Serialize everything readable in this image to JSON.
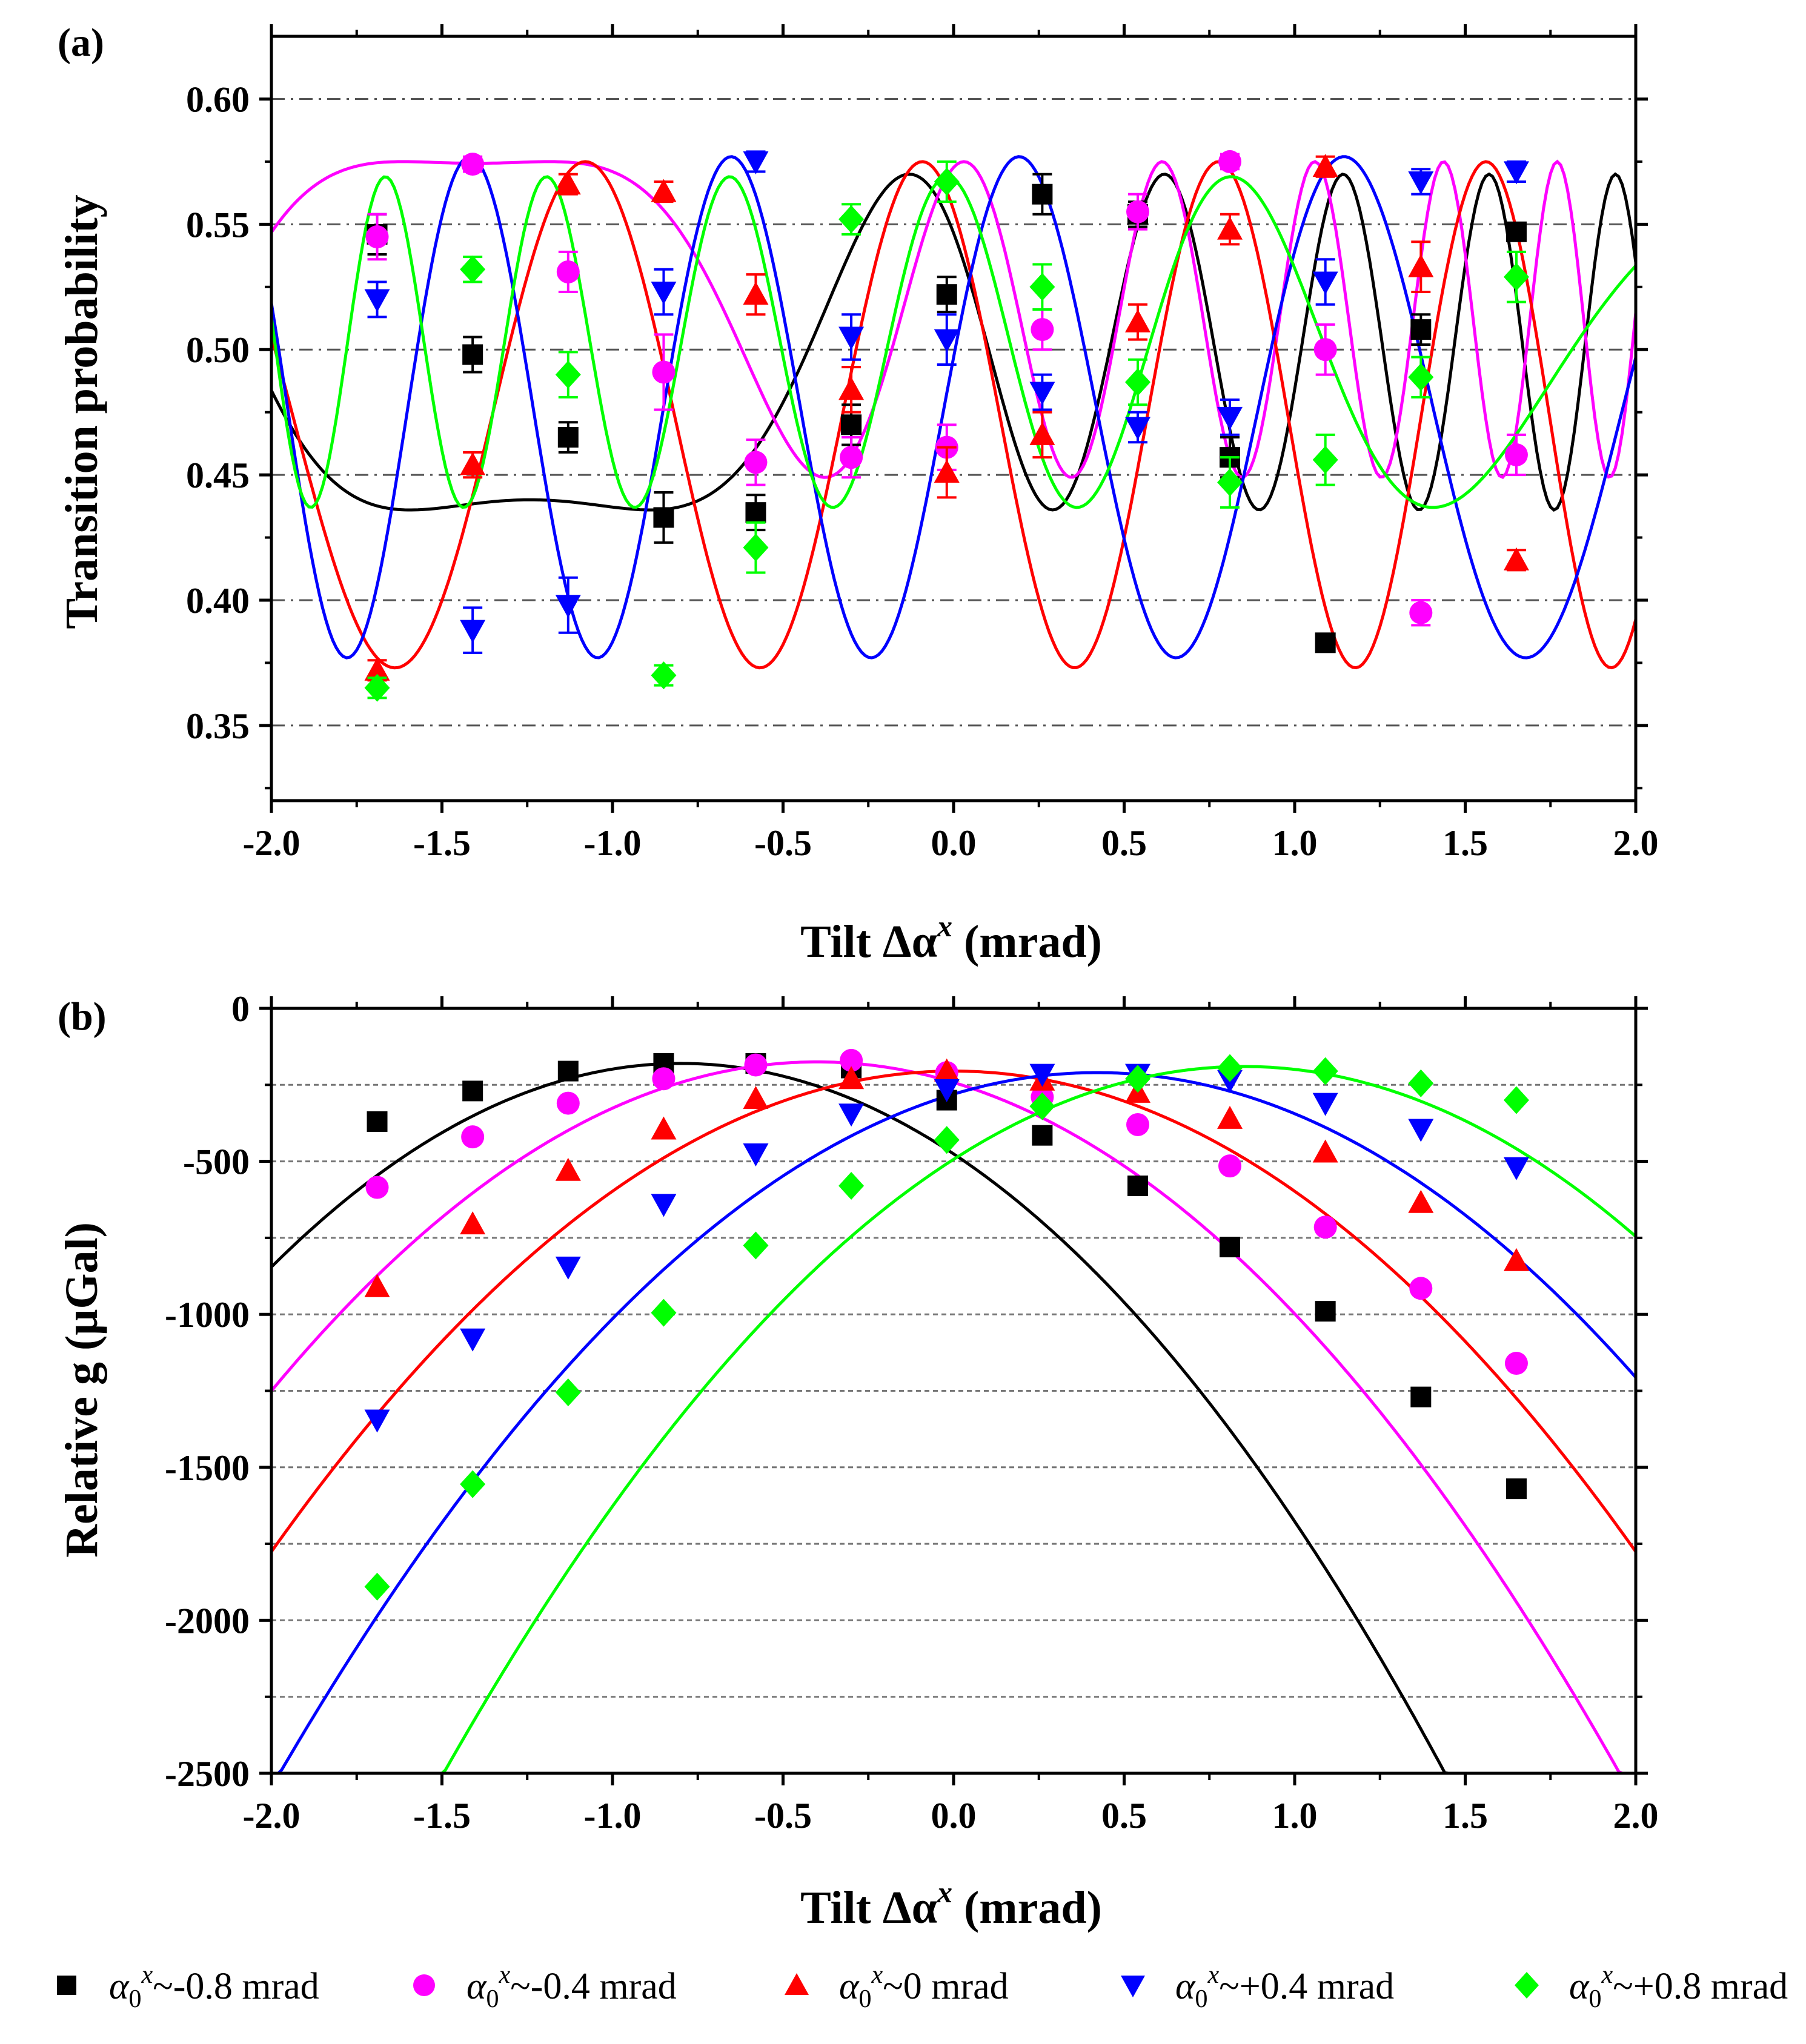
{
  "figure": {
    "legend": [
      {
        "marker": "square",
        "color": "#000000",
        "symbol": "α",
        "sub": "0",
        "sup": "x",
        "text": "~-0.8 mrad"
      },
      {
        "marker": "circle",
        "color": "#ff00ff",
        "symbol": "α",
        "sub": "0",
        "sup": "x",
        "text": "~-0.4 mrad"
      },
      {
        "marker": "triangle-up",
        "color": "#ff0000",
        "symbol": "α",
        "sub": "0",
        "sup": "x",
        "text": "~0 mrad"
      },
      {
        "marker": "triangle-down",
        "color": "#0000ff",
        "symbol": "α",
        "sub": "0",
        "sup": "x",
        "text": "~+0.4 mrad"
      },
      {
        "marker": "diamond",
        "color": "#00ff00",
        "symbol": "α",
        "sub": "0",
        "sup": "x",
        "text": "~+0.8 mrad"
      }
    ]
  },
  "chart_data": [
    {
      "panel_label": "(a)",
      "type": "scatter",
      "xlabel": "Tilt Δα",
      "xlabel_sup": "x",
      "xlabel_unit": " (mrad)",
      "ylabel": "Transition probability",
      "xlim": [
        -2.0,
        2.0
      ],
      "ylim": [
        0.32,
        0.625
      ],
      "xticks": [
        -2.0,
        -1.5,
        -1.0,
        -0.5,
        0.0,
        0.5,
        1.0,
        1.5,
        2.0
      ],
      "xtick_labels": [
        "-2.0",
        "-1.5",
        "-1.0",
        "-0.5",
        "0.0",
        "0.5",
        "1.0",
        "1.5",
        "2.0"
      ],
      "yticks": [
        0.35,
        0.4,
        0.45,
        0.5,
        0.55,
        0.6
      ],
      "ytick_labels": [
        "0.35",
        "0.40",
        "0.45",
        "0.50",
        "0.55",
        "0.60"
      ],
      "gridlines": [
        0.35,
        0.4,
        0.45,
        0.5,
        0.55,
        0.6
      ],
      "x": [
        -1.69,
        -1.41,
        -1.13,
        -0.85,
        -0.58,
        -0.3,
        -0.02,
        0.26,
        0.54,
        0.81,
        1.09,
        1.37,
        1.65
      ],
      "series": [
        {
          "name": "α0x~-0.8 mrad",
          "color": "#000000",
          "marker": "square",
          "values": [
            0.546,
            0.498,
            0.465,
            0.433,
            0.435,
            0.47,
            0.522,
            0.562,
            0.554,
            0.457,
            0.383,
            0.508,
            0.547
          ],
          "errors": [
            0.008,
            0.007,
            0.006,
            0.01,
            0.007,
            0.008,
            0.007,
            0.008,
            0.005,
            0.008,
            0.003,
            0.006,
            0.003
          ],
          "fit": {
            "kind": "sin_chirp",
            "c": 0.503,
            "a": 0.067,
            "w0": 2.0,
            "w1": 0.9,
            "x0": -0.13,
            "phi": 1.57
          }
        },
        {
          "name": "α0x~-0.4 mrad",
          "color": "#ff00ff",
          "marker": "circle",
          "values": [
            0.545,
            0.574,
            0.531,
            0.491,
            0.455,
            0.457,
            0.461,
            0.508,
            0.555,
            0.575,
            0.5,
            0.395,
            0.458
          ],
          "errors": [
            0.009,
            0.003,
            0.008,
            0.015,
            0.009,
            0.008,
            0.009,
            0.008,
            0.007,
            0.003,
            0.01,
            0.005,
            0.008
          ],
          "fit": {
            "kind": "sin_chirp",
            "c": 0.512,
            "a": 0.063,
            "w0": 2.8,
            "w1": 1.0,
            "x0": 0.0,
            "phi": 1.3
          }
        },
        {
          "name": "α0x~0 mrad",
          "color": "#ff0000",
          "marker": "triangle-up",
          "values": [
            0.372,
            0.454,
            0.566,
            0.563,
            0.522,
            0.484,
            0.451,
            0.466,
            0.511,
            0.548,
            0.573,
            0.533,
            0.416
          ],
          "errors": [
            0.004,
            0.005,
            0.004,
            0.004,
            0.008,
            0.009,
            0.01,
            0.009,
            0.007,
            0.006,
            0.004,
            0.01,
            0.004
          ],
          "fit": {
            "kind": "sin_chirp",
            "c": 0.474,
            "a": 0.101,
            "w0": 2.2,
            "w1": 0.15,
            "x0": 0.0,
            "phi": 2.2
          }
        },
        {
          "name": "α0x~+0.4 mrad",
          "color": "#0000ff",
          "marker": "triangle-down",
          "values": [
            0.52,
            0.388,
            0.398,
            0.523,
            0.575,
            0.505,
            0.504,
            0.483,
            0.469,
            0.473,
            0.527,
            0.567,
            0.571
          ],
          "errors": [
            0.007,
            0.009,
            0.011,
            0.009,
            0.004,
            0.009,
            0.01,
            0.007,
            0.006,
            0.007,
            0.009,
            0.005,
            0.004
          ],
          "fit": {
            "kind": "sin_chirp",
            "c": 0.477,
            "a": 0.1,
            "w0": 2.3,
            "w1": -0.15,
            "x0": 0.0,
            "phi": 0.2
          }
        },
        {
          "name": "α0x~+0.8 mrad",
          "color": "#00ff00",
          "marker": "diamond",
          "values": [
            0.365,
            0.532,
            0.49,
            0.37,
            0.421,
            0.552,
            0.567,
            0.525,
            0.487,
            0.447,
            0.456,
            0.489,
            0.529
          ],
          "errors": [
            0.004,
            0.005,
            0.009,
            0.004,
            0.01,
            0.006,
            0.008,
            0.009,
            0.009,
            0.01,
            0.01,
            0.008,
            0.01
          ],
          "fit": {
            "kind": "sin_chirp",
            "c": 0.503,
            "a": 0.066,
            "w0": 2.7,
            "w1": -0.5,
            "x0": 0.1,
            "phi": 2.6
          }
        }
      ]
    },
    {
      "panel_label": "(b)",
      "type": "scatter",
      "xlabel": "Tilt Δα",
      "xlabel_sup": "x",
      "xlabel_unit": " (mrad)",
      "ylabel": "Relative g (μGal)",
      "xlim": [
        -2.0,
        2.0
      ],
      "ylim": [
        -2500,
        0
      ],
      "xticks": [
        -2.0,
        -1.5,
        -1.0,
        -0.5,
        0.0,
        0.5,
        1.0,
        1.5,
        2.0
      ],
      "xtick_labels": [
        "-2.0",
        "-1.5",
        "-1.0",
        "-0.5",
        "0.0",
        "0.5",
        "1.0",
        "1.5",
        "2.0"
      ],
      "yticks": [
        -2500,
        -2000,
        -1500,
        -1000,
        -500,
        0
      ],
      "ytick_labels": [
        "-2500",
        "-2000",
        "-1500",
        "-1000",
        "-500",
        "0"
      ],
      "gridlines": [
        -2250,
        -2000,
        -1750,
        -1500,
        -1250,
        -1000,
        -750,
        -500,
        -250
      ],
      "x": [
        -1.69,
        -1.41,
        -1.13,
        -0.85,
        -0.58,
        -0.3,
        -0.02,
        0.26,
        0.54,
        0.81,
        1.09,
        1.37,
        1.65
      ],
      "series": [
        {
          "name": "α0x~-0.8 mrad",
          "color": "#000000",
          "marker": "square",
          "values": [
            -370,
            -270,
            -205,
            -180,
            -180,
            -195,
            -300,
            -415,
            -580,
            -780,
            -990,
            -1270,
            -1570
          ],
          "fit": {
            "kind": "parabola",
            "vertex_x": -0.8,
            "vertex_y": -180,
            "k": 1.1
          }
        },
        {
          "name": "α0x~-0.4 mrad",
          "color": "#ff00ff",
          "marker": "circle",
          "values": [
            -585,
            -420,
            -310,
            -230,
            -185,
            -170,
            -210,
            -290,
            -380,
            -515,
            -715,
            -915,
            -1160
          ],
          "fit": {
            "kind": "parabola",
            "vertex_x": -0.4,
            "vertex_y": -175,
            "k": 1.0
          }
        },
        {
          "name": "α0x~0 mrad",
          "color": "#ff0000",
          "marker": "triangle-up",
          "values": [
            -910,
            -705,
            -530,
            -395,
            -295,
            -230,
            -205,
            -235,
            -275,
            -360,
            -470,
            -635,
            -825
          ],
          "fit": {
            "kind": "parabola",
            "vertex_x": 0.0,
            "vertex_y": -205,
            "k": 0.935
          }
        },
        {
          "name": "α0x~+0.4 mrad",
          "color": "#0000ff",
          "marker": "triangle-down",
          "values": [
            -1345,
            -1080,
            -845,
            -640,
            -475,
            -345,
            -265,
            -215,
            -215,
            -235,
            -310,
            -395,
            -520
          ],
          "fit": {
            "kind": "parabola",
            "vertex_x": 0.42,
            "vertex_y": -210,
            "k": 0.95
          }
        },
        {
          "name": "α0x~+0.8 mrad",
          "color": "#00ff00",
          "marker": "diamond",
          "values": [
            -1890,
            -1555,
            -1255,
            -995,
            -775,
            -580,
            -430,
            -320,
            -230,
            -195,
            -205,
            -245,
            -300
          ],
          "fit": {
            "kind": "parabola",
            "vertex_x": 0.85,
            "vertex_y": -190,
            "k": 1.0
          }
        }
      ]
    }
  ]
}
